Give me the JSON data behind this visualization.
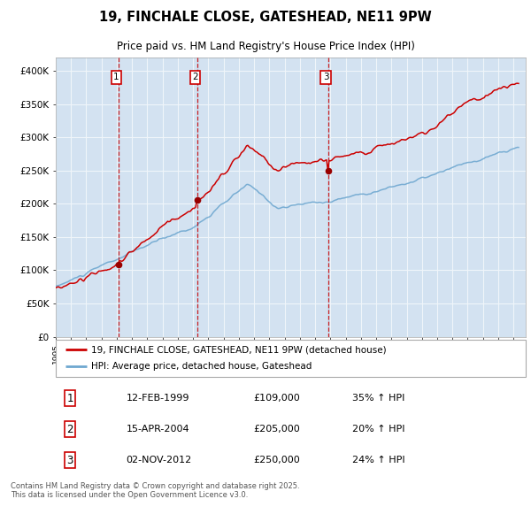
{
  "title": "19, FINCHALE CLOSE, GATESHEAD, NE11 9PW",
  "subtitle": "Price paid vs. HM Land Registry's House Price Index (HPI)",
  "hpi_label": "HPI: Average price, detached house, Gateshead",
  "property_label": "19, FINCHALE CLOSE, GATESHEAD, NE11 9PW (detached house)",
  "purchases": [
    {
      "num": 1,
      "date": "12-FEB-1999",
      "price": 109000,
      "hpi_pct": "35% ↑ HPI"
    },
    {
      "num": 2,
      "date": "15-APR-2004",
      "price": 205000,
      "hpi_pct": "20% ↑ HPI"
    },
    {
      "num": 3,
      "date": "02-NOV-2012",
      "price": 250000,
      "hpi_pct": "24% ↑ HPI"
    }
  ],
  "purchase_dates_decimal": [
    1999.12,
    2004.29,
    2012.84
  ],
  "purchase_prices": [
    109000,
    205000,
    250000
  ],
  "hpi_color": "#6fa8d0",
  "property_color": "#cc0000",
  "vline_color": "#cc0000",
  "plot_bg": "#dce9f5",
  "ylim": [
    0,
    420000
  ],
  "xlim_start": 1995.0,
  "xlim_end": 2025.8,
  "footer": "Contains HM Land Registry data © Crown copyright and database right 2025.\nThis data is licensed under the Open Government Licence v3.0.",
  "yticks": [
    0,
    50000,
    100000,
    150000,
    200000,
    250000,
    300000,
    350000,
    400000
  ],
  "ytick_labels": [
    "£0",
    "£50K",
    "£100K",
    "£150K",
    "£200K",
    "£250K",
    "£300K",
    "£350K",
    "£400K"
  ]
}
